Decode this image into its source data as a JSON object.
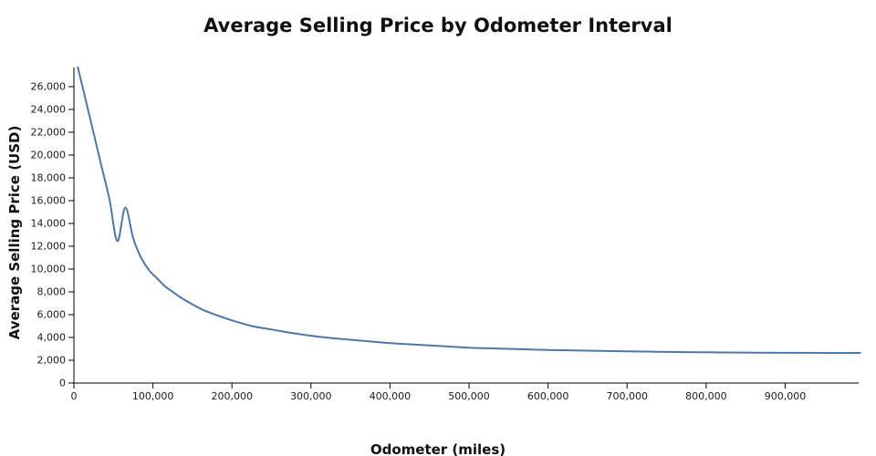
{
  "page": {
    "background": "#ffffff"
  },
  "chart_data": {
    "type": "line",
    "title": "Average Selling Price by Odometer Interval",
    "xlabel": "Odometer (miles)",
    "ylabel": "Average Selling Price (USD)",
    "xlim": [
      0,
      993000
    ],
    "ylim": [
      0,
      27680
    ],
    "x_ticks": [
      0,
      100000,
      200000,
      300000,
      400000,
      500000,
      600000,
      700000,
      800000,
      900000
    ],
    "y_ticks": [
      0,
      2000,
      4000,
      6000,
      8000,
      10000,
      12000,
      14000,
      16000,
      18000,
      20000,
      22000,
      24000,
      26000
    ],
    "grid": false,
    "legend": false,
    "line_color": "#4c78a8",
    "axis_color": "#000000",
    "tick_label_color": "#1a1a1a",
    "series": [
      {
        "name": "Average Selling Price (USD)",
        "x": [
          5000,
          15000,
          25000,
          35000,
          45000,
          55000,
          65000,
          75000,
          85000,
          95000,
          105000,
          115000,
          125000,
          137500,
          150000,
          162500,
          175000,
          200000,
          225000,
          250000,
          275000,
          300000,
          325000,
          350000,
          375000,
          400000,
          425000,
          450000,
          475000,
          500000,
          525000,
          550000,
          575000,
          600000,
          625000,
          650000,
          675000,
          700000,
          725000,
          750000,
          775000,
          800000,
          825000,
          850000,
          875000,
          900000,
          925000,
          950000,
          975000,
          995000
        ],
        "y": [
          27700,
          24800,
          21900,
          19000,
          16100,
          12450,
          15400,
          12700,
          11000,
          9900,
          9200,
          8500,
          8000,
          7400,
          6900,
          6450,
          6100,
          5500,
          5000,
          4700,
          4400,
          4150,
          3950,
          3800,
          3650,
          3500,
          3400,
          3300,
          3200,
          3100,
          3050,
          3000,
          2950,
          2900,
          2870,
          2840,
          2810,
          2780,
          2760,
          2730,
          2710,
          2700,
          2680,
          2670,
          2660,
          2650,
          2645,
          2640,
          2640,
          2640
        ]
      }
    ]
  }
}
